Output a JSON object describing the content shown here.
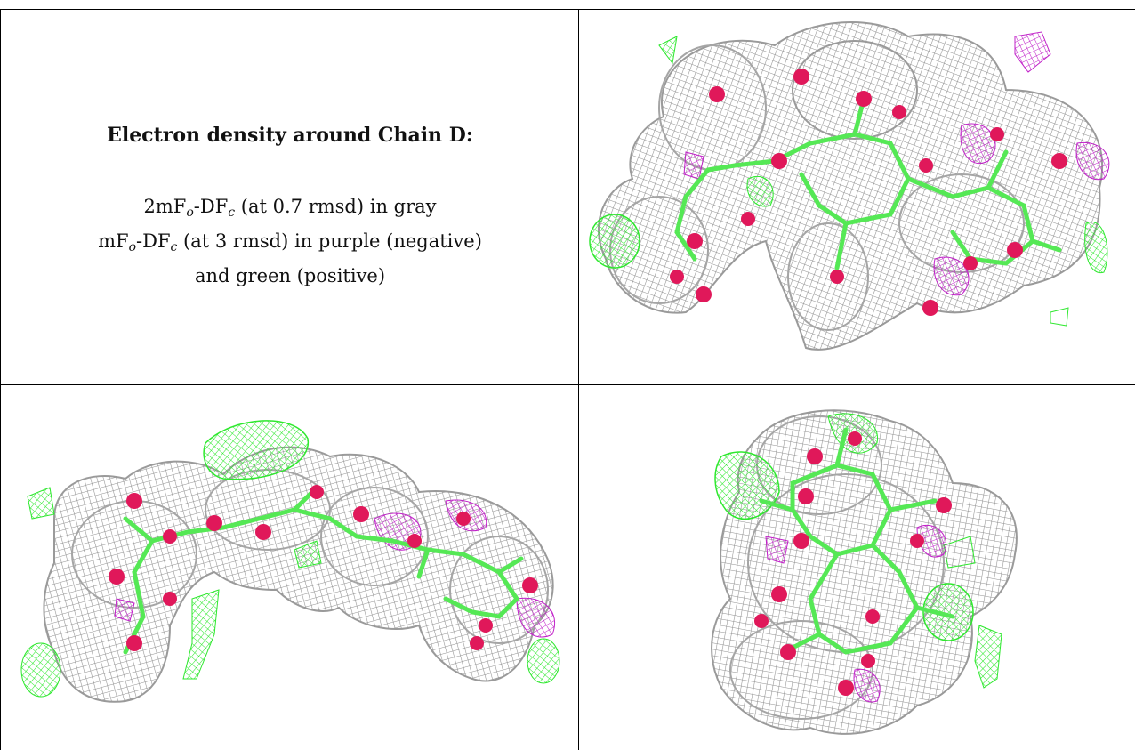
{
  "caption": {
    "title": "Electron density around Chain D:",
    "line1": {
      "prefix": "2mF",
      "sub1": "o",
      "mid": "-DF",
      "sub2": "c",
      "suffix": " (at 0.7 rmsd) in gray"
    },
    "line2": {
      "prefix": "mF",
      "sub1": "o",
      "mid": "-DF",
      "sub2": "c",
      "suffix": " (at 3 rmsd) in purple (negative)"
    },
    "line3": "and green (positive)"
  },
  "colors": {
    "mesh_gray": "#9a9a9a",
    "mesh_green": "#2ee82e",
    "mesh_purple": "#c020c8",
    "atom_red": "#e0185a",
    "bond_green": "#55e855"
  },
  "panels": [
    {
      "name": "top-right-view"
    },
    {
      "name": "bottom-left-view"
    },
    {
      "name": "bottom-right-view"
    }
  ]
}
